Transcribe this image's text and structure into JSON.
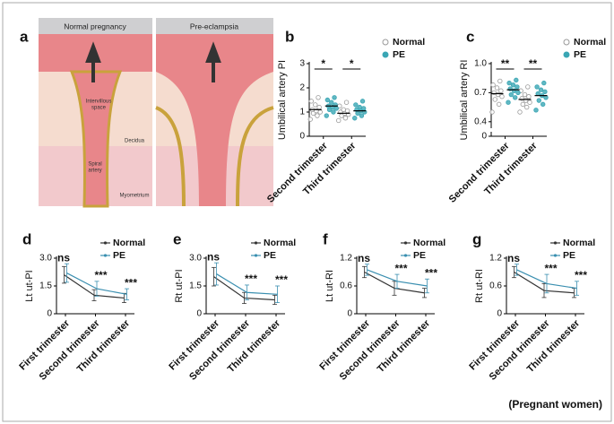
{
  "illustration": {
    "label": "a",
    "left_title": "Normal pregnancy",
    "right_title": "Pre-eclampsia",
    "labels": [
      "Intervillous",
      "space",
      "Decidua",
      "Spiral",
      "artery",
      "Myometrium"
    ]
  },
  "footer": "(Pregnant women)",
  "chart_data": [
    {
      "type": "dot",
      "label": "b",
      "ylabel": "Umbilical artery PI",
      "categories": [
        "Second trimester",
        "Third trimester"
      ],
      "series": [
        {
          "name": "Normal",
          "color": "#9a9a9a",
          "values": [
            1.1,
            0.95
          ],
          "points": [
            [
              0.7,
              0.85,
              0.95,
              1.0,
              1.05,
              1.1,
              1.2,
              1.3,
              1.45,
              1.6
            ],
            [
              0.65,
              0.75,
              0.85,
              0.9,
              0.95,
              1.0,
              1.05,
              1.1,
              1.25,
              1.4
            ]
          ]
        },
        {
          "name": "PE",
          "color": "#3aa6b4",
          "values": [
            1.25,
            1.05
          ],
          "points": [
            [
              0.85,
              1.0,
              1.1,
              1.15,
              1.2,
              1.25,
              1.3,
              1.4,
              1.5,
              1.6
            ],
            [
              0.75,
              0.85,
              0.95,
              1.0,
              1.05,
              1.1,
              1.15,
              1.2,
              1.3,
              1.45
            ]
          ]
        }
      ],
      "annotations": [
        "*",
        "*"
      ],
      "ylim": [
        0,
        3
      ],
      "yticks": [
        0,
        1,
        2,
        3
      ],
      "legend": "outside-top-right"
    },
    {
      "type": "dot",
      "label": "c",
      "ylabel": "Umbilical artery RI",
      "categories": [
        "Second trimester",
        "Third trimester"
      ],
      "series": [
        {
          "name": "Normal",
          "color": "#9a9a9a",
          "values": [
            0.69,
            0.63
          ],
          "points": [
            [
              0.5,
              0.58,
              0.63,
              0.66,
              0.68,
              0.7,
              0.72,
              0.75,
              0.78,
              0.82
            ],
            [
              0.5,
              0.55,
              0.58,
              0.6,
              0.62,
              0.64,
              0.66,
              0.68,
              0.72,
              0.76
            ]
          ]
        },
        {
          "name": "PE",
          "color": "#3aa6b4",
          "values": [
            0.73,
            0.67
          ],
          "points": [
            [
              0.6,
              0.65,
              0.68,
              0.7,
              0.72,
              0.74,
              0.76,
              0.78,
              0.8,
              0.83
            ],
            [
              0.52,
              0.58,
              0.62,
              0.65,
              0.67,
              0.69,
              0.71,
              0.73,
              0.76,
              0.8
            ]
          ]
        }
      ],
      "annotations": [
        "**",
        "**"
      ],
      "ylim": [
        0.25,
        1.0
      ],
      "yticks": [
        0.4,
        0.7,
        {
          "value": 1,
          "label": "1.0"
        }
      ],
      "break_tick": 0,
      "legend": "outside-top-right"
    },
    {
      "type": "line",
      "label": "d",
      "ylabel": "Lt ut-PI",
      "categories": [
        "First trimester",
        "Second trimester",
        "Third trimester"
      ],
      "series": [
        {
          "name": "Normal",
          "color": "#333333",
          "values": [
            2.1,
            1.0,
            0.85
          ],
          "errors": [
            0.45,
            0.3,
            0.25
          ]
        },
        {
          "name": "PE",
          "color": "#3a8fb0",
          "values": [
            2.2,
            1.35,
            1.05
          ],
          "errors": [
            0.5,
            0.4,
            0.3
          ]
        }
      ],
      "annotations": [
        "ns",
        "***",
        "***"
      ],
      "ylim": [
        0,
        3
      ],
      "yticks": [
        0,
        1.5,
        {
          "value": 3,
          "label": "3.0"
        }
      ],
      "legend": "top-right"
    },
    {
      "type": "line",
      "label": "e",
      "ylabel": "Rt ut-PI",
      "categories": [
        "First trimester",
        "Second trimester",
        "Third trimester"
      ],
      "series": [
        {
          "name": "Normal",
          "color": "#333333",
          "values": [
            2.0,
            0.85,
            0.75
          ],
          "errors": [
            0.5,
            0.3,
            0.25
          ]
        },
        {
          "name": "PE",
          "color": "#3a8fb0",
          "values": [
            2.15,
            1.15,
            1.05
          ],
          "errors": [
            0.6,
            0.4,
            0.45
          ]
        }
      ],
      "annotations": [
        "ns",
        "***",
        "***"
      ],
      "ylim": [
        0,
        3
      ],
      "yticks": [
        0,
        1.5,
        {
          "value": 3,
          "label": "3.0"
        }
      ],
      "legend": "top-right"
    },
    {
      "type": "line",
      "label": "f",
      "ylabel": "Lt ut-RI",
      "categories": [
        "First trimester",
        "Second trimester",
        "Third trimester"
      ],
      "series": [
        {
          "name": "Normal",
          "color": "#333333",
          "values": [
            0.9,
            0.55,
            0.45
          ],
          "errors": [
            0.12,
            0.15,
            0.1
          ]
        },
        {
          "name": "PE",
          "color": "#3a8fb0",
          "values": [
            0.95,
            0.7,
            0.6
          ],
          "errors": [
            0.12,
            0.15,
            0.15
          ]
        }
      ],
      "annotations": [
        "ns",
        "***",
        "***"
      ],
      "ylim": [
        0,
        1.2
      ],
      "yticks": [
        0,
        0.6,
        {
          "value": 1.2,
          "label": "1.2"
        }
      ],
      "legend": "top-right"
    },
    {
      "type": "line",
      "label": "g",
      "ylabel": "Rt ut-RI",
      "categories": [
        "First trimester",
        "Second trimester",
        "Third trimester"
      ],
      "series": [
        {
          "name": "Normal",
          "color": "#333333",
          "values": [
            0.9,
            0.5,
            0.45
          ],
          "errors": [
            0.12,
            0.15,
            0.1
          ]
        },
        {
          "name": "PE",
          "color": "#3a8fb0",
          "values": [
            0.95,
            0.65,
            0.55
          ],
          "errors": [
            0.12,
            0.2,
            0.15
          ]
        }
      ],
      "annotations": [
        "ns",
        "***",
        "***"
      ],
      "ylim": [
        0,
        1.2
      ],
      "yticks": [
        0,
        0.6,
        1.2
      ],
      "legend": "top-right"
    }
  ]
}
